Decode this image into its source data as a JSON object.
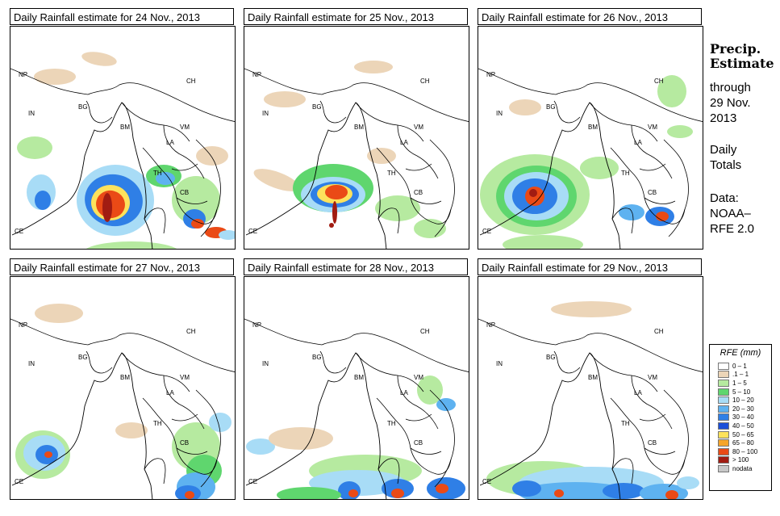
{
  "panels": [
    {
      "title": "Daily Rainfall estimate for  24 Nov., 2013",
      "date": "24 Nov., 2013"
    },
    {
      "title": "Daily Rainfall estimate for  25 Nov., 2013",
      "date": "25 Nov., 2013"
    },
    {
      "title": "Daily Rainfall estimate for  26 Nov., 2013",
      "date": "26 Nov., 2013"
    },
    {
      "title": "Daily Rainfall estimate for  27 Nov., 2013",
      "date": "27 Nov., 2013"
    },
    {
      "title": "Daily Rainfall estimate for  28 Nov., 2013",
      "date": "28 Nov., 2013"
    },
    {
      "title": "Daily Rainfall estimate for  29 Nov., 2013",
      "date": "29 Nov., 2013"
    }
  ],
  "map_labels": [
    "NP",
    "CH",
    "IN",
    "BG",
    "BM",
    "VM",
    "LA",
    "TH",
    "CB",
    "CE"
  ],
  "side": {
    "heading_line1": "Precip.",
    "heading_line2": "Estimate",
    "through_line1": "through",
    "through_line2": "29 Nov.",
    "through_line3": "2013",
    "totals_line1": "Daily",
    "totals_line2": "Totals",
    "data_line1": "Data:",
    "data_line2": "NOAA–",
    "data_line3": "RFE 2.0"
  },
  "legend": {
    "title": "RFE (mm)",
    "items": [
      {
        "label": "0 – 1",
        "color": "#ffffff"
      },
      {
        "label": ".1 – 1",
        "color": "#ecd5b8"
      },
      {
        "label": "1 – 5",
        "color": "#b6eaa0"
      },
      {
        "label": "5 – 10",
        "color": "#5fd66e"
      },
      {
        "label": "10 – 20",
        "color": "#a8dcf6"
      },
      {
        "label": "20 – 30",
        "color": "#5eb2f0"
      },
      {
        "label": "30 – 40",
        "color": "#2f7fe6"
      },
      {
        "label": "40 – 50",
        "color": "#1c4fd8"
      },
      {
        "label": "50 – 65",
        "color": "#fde25c"
      },
      {
        "label": "65 – 80",
        "color": "#f6a52a"
      },
      {
        "label": "80 – 100",
        "color": "#ea4a16"
      },
      {
        "label": "> 100",
        "color": "#a11c12"
      },
      {
        "label": "nodata",
        "color": "#c8c8c8"
      }
    ]
  }
}
